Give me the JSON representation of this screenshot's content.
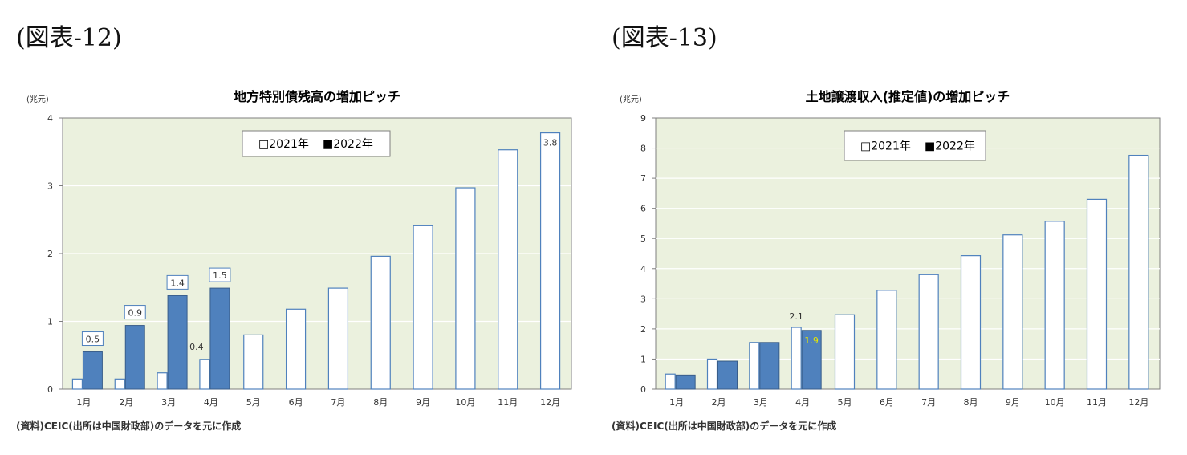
{
  "figure_labels": [
    "(図表-12)",
    "(図表-13)"
  ],
  "chart_data": [
    {
      "type": "bar",
      "title": "地方特別債残高の増加ピッチ",
      "unit_label": "(兆元)",
      "categories": [
        "1月",
        "2月",
        "3月",
        "4月",
        "5月",
        "6月",
        "7月",
        "8月",
        "9月",
        "10月",
        "11月",
        "12月"
      ],
      "ylim": [
        0,
        4
      ],
      "yticks": [
        "0",
        "1",
        "2",
        "3",
        "4"
      ],
      "series": [
        {
          "name": "□2021年",
          "color": "#ffffff",
          "values": [
            0.15,
            0.15,
            0.24,
            0.44,
            0.8,
            1.18,
            1.49,
            1.96,
            2.41,
            2.97,
            3.53,
            3.78
          ]
        },
        {
          "name": "■2022年",
          "color": "#4f81bd",
          "values": [
            0.55,
            0.94,
            1.38,
            1.49,
            null,
            null,
            null,
            null,
            null,
            null,
            null,
            null
          ]
        }
      ],
      "data_labels": [
        {
          "series": 1,
          "index": 0,
          "text": "0.5",
          "boxed": true
        },
        {
          "series": 1,
          "index": 1,
          "text": "0.9",
          "boxed": true
        },
        {
          "series": 1,
          "index": 2,
          "text": "1.4",
          "boxed": true
        },
        {
          "series": 1,
          "index": 3,
          "text": "1.5",
          "boxed": true
        },
        {
          "series": 0,
          "index": 3,
          "text": "0.4",
          "boxed": false
        },
        {
          "series": 0,
          "index": 11,
          "text": "3.8",
          "boxed": false,
          "inside": true
        }
      ],
      "legend_position": "top-center",
      "source": "(資料)CEIC(出所は中国財政部)のデータを元に作成",
      "grid": true
    },
    {
      "type": "bar",
      "title": "土地譲渡収入(推定値)の増加ピッチ",
      "unit_label": "(兆元)",
      "categories": [
        "1月",
        "2月",
        "3月",
        "4月",
        "5月",
        "6月",
        "7月",
        "8月",
        "9月",
        "10月",
        "11月",
        "12月"
      ],
      "ylim": [
        0,
        9
      ],
      "yticks": [
        "0",
        "1",
        "2",
        "3",
        "4",
        "5",
        "6",
        "7",
        "8",
        "9"
      ],
      "series": [
        {
          "name": "□2021年",
          "color": "#ffffff",
          "values": [
            0.5,
            1.0,
            1.55,
            2.05,
            2.47,
            3.28,
            3.8,
            4.43,
            5.12,
            5.57,
            6.3,
            7.76
          ]
        },
        {
          "name": "■2022年",
          "color": "#4f81bd",
          "values": [
            0.47,
            0.93,
            1.55,
            1.95,
            null,
            null,
            null,
            null,
            null,
            null,
            null,
            null
          ]
        }
      ],
      "data_labels": [
        {
          "series": 0,
          "index": 3,
          "text": "2.1",
          "boxed": false
        },
        {
          "series": 1,
          "index": 3,
          "text": "1.9",
          "boxed": false,
          "inside": true,
          "color": "#e6e600"
        }
      ],
      "legend_position": "top-center",
      "source": "(資料)CEIC(出所は中国財政部)のデータを元に作成",
      "grid": true
    }
  ]
}
